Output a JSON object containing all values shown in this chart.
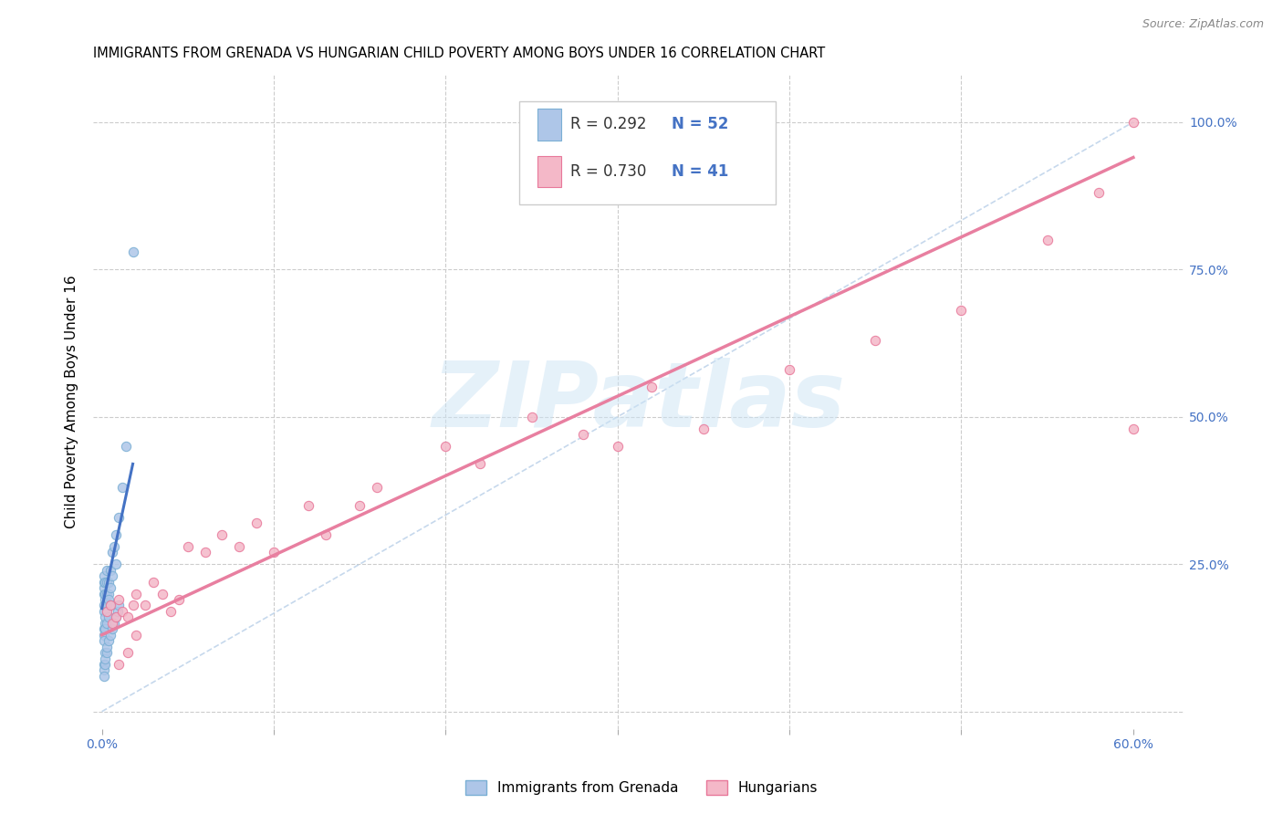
{
  "title": "IMMIGRANTS FROM GRENADA VS HUNGARIAN CHILD POVERTY AMONG BOYS UNDER 16 CORRELATION CHART",
  "source": "Source: ZipAtlas.com",
  "ylabel": "Child Poverty Among Boys Under 16",
  "xlim": [
    -0.005,
    0.63
  ],
  "ylim": [
    -0.03,
    1.08
  ],
  "x_ticks": [
    0.0,
    0.1,
    0.2,
    0.3,
    0.4,
    0.5,
    0.6
  ],
  "y_ticks": [
    0.0,
    0.25,
    0.5,
    0.75,
    1.0
  ],
  "y_tick_labels_right": [
    "",
    "25.0%",
    "50.0%",
    "75.0%",
    "100.0%"
  ],
  "blue_color": "#aec6e8",
  "blue_edge": "#7aafd4",
  "pink_color": "#f4b8c8",
  "pink_edge": "#e8789a",
  "blue_line_color": "#4472c4",
  "pink_line_color": "#e87fa0",
  "diag_line_color": "#b8cfe8",
  "watermark": "ZIPatlas",
  "legend_R1": "R = 0.292",
  "legend_N1": "N = 52",
  "legend_R2": "R = 0.730",
  "legend_N2": "N = 41",
  "scatter_size": 55,
  "blue_scatter_x": [
    0.001,
    0.001,
    0.001,
    0.001,
    0.001,
    0.001,
    0.001,
    0.001,
    0.001,
    0.002,
    0.002,
    0.002,
    0.002,
    0.002,
    0.002,
    0.002,
    0.003,
    0.003,
    0.003,
    0.003,
    0.003,
    0.003,
    0.004,
    0.004,
    0.004,
    0.004,
    0.005,
    0.005,
    0.005,
    0.006,
    0.006,
    0.007,
    0.008,
    0.008,
    0.01,
    0.012,
    0.014,
    0.001,
    0.001,
    0.001,
    0.002,
    0.002,
    0.003,
    0.003,
    0.004,
    0.005,
    0.006,
    0.007,
    0.008,
    0.009,
    0.01,
    0.018
  ],
  "blue_scatter_y": [
    0.17,
    0.18,
    0.2,
    0.21,
    0.22,
    0.23,
    0.14,
    0.13,
    0.12,
    0.19,
    0.2,
    0.22,
    0.15,
    0.16,
    0.14,
    0.1,
    0.18,
    0.2,
    0.22,
    0.24,
    0.17,
    0.15,
    0.2,
    0.22,
    0.19,
    0.16,
    0.21,
    0.24,
    0.18,
    0.23,
    0.27,
    0.28,
    0.3,
    0.25,
    0.33,
    0.38,
    0.45,
    0.08,
    0.07,
    0.06,
    0.08,
    0.09,
    0.1,
    0.11,
    0.12,
    0.13,
    0.14,
    0.15,
    0.16,
    0.17,
    0.18,
    0.78
  ],
  "pink_scatter_x": [
    0.003,
    0.005,
    0.006,
    0.008,
    0.01,
    0.012,
    0.015,
    0.018,
    0.02,
    0.025,
    0.03,
    0.035,
    0.04,
    0.045,
    0.05,
    0.06,
    0.07,
    0.08,
    0.09,
    0.1,
    0.12,
    0.13,
    0.15,
    0.16,
    0.2,
    0.22,
    0.25,
    0.28,
    0.3,
    0.32,
    0.35,
    0.4,
    0.45,
    0.5,
    0.55,
    0.58,
    0.6,
    0.01,
    0.015,
    0.02,
    0.6
  ],
  "pink_scatter_y": [
    0.17,
    0.18,
    0.15,
    0.16,
    0.19,
    0.17,
    0.16,
    0.18,
    0.2,
    0.18,
    0.22,
    0.2,
    0.17,
    0.19,
    0.28,
    0.27,
    0.3,
    0.28,
    0.32,
    0.27,
    0.35,
    0.3,
    0.35,
    0.38,
    0.45,
    0.42,
    0.5,
    0.47,
    0.45,
    0.55,
    0.48,
    0.58,
    0.63,
    0.68,
    0.8,
    0.88,
    1.0,
    0.08,
    0.1,
    0.13,
    0.48
  ],
  "blue_trend_x": [
    0.0,
    0.018
  ],
  "blue_trend_y": [
    0.175,
    0.42
  ],
  "pink_trend_x": [
    0.0,
    0.6
  ],
  "pink_trend_y": [
    0.13,
    0.94
  ],
  "diag_trend_x": [
    0.0,
    0.6
  ],
  "diag_trend_y": [
    0.0,
    1.0
  ]
}
